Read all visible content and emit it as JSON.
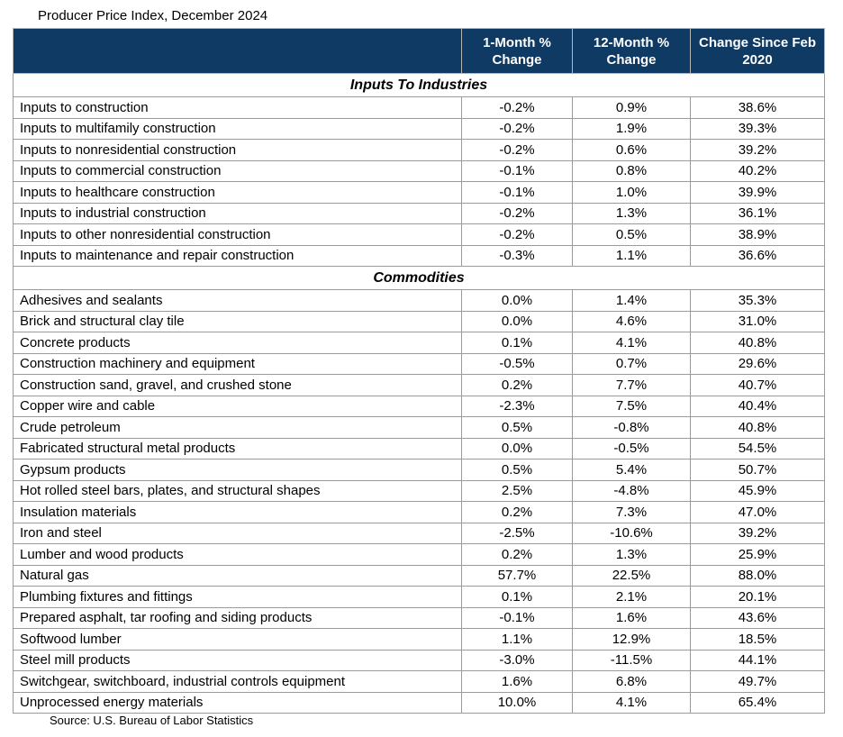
{
  "title": "Producer Price Index, December 2024",
  "source": "Source: U.S. Bureau of Labor Statistics",
  "colors": {
    "header_background": "#0e3a63",
    "header_text": "#ffffff",
    "grid_border": "#9b9b9b",
    "body_text": "#000000"
  },
  "chart_data": {
    "type": "table",
    "title": "Producer Price Index, December 2024",
    "source": "Source: U.S. Bureau of Labor Statistics",
    "columns": [
      "1-Month % Change",
      "12-Month % Change",
      "Change Since Feb 2020"
    ],
    "sections": [
      {
        "label": "Inputs To Industries",
        "rows": [
          {
            "label": "Inputs to construction",
            "values": [
              "-0.2%",
              "0.9%",
              "38.6%"
            ]
          },
          {
            "label": "Inputs to multifamily construction",
            "values": [
              "-0.2%",
              "1.9%",
              "39.3%"
            ]
          },
          {
            "label": "Inputs to nonresidential construction",
            "values": [
              "-0.2%",
              "0.6%",
              "39.2%"
            ]
          },
          {
            "label": "Inputs to commercial construction",
            "values": [
              "-0.1%",
              "0.8%",
              "40.2%"
            ]
          },
          {
            "label": "Inputs to healthcare construction",
            "values": [
              "-0.1%",
              "1.0%",
              "39.9%"
            ]
          },
          {
            "label": "Inputs to industrial construction",
            "values": [
              "-0.2%",
              "1.3%",
              "36.1%"
            ]
          },
          {
            "label": "Inputs to other nonresidential construction",
            "values": [
              "-0.2%",
              "0.5%",
              "38.9%"
            ]
          },
          {
            "label": "Inputs to maintenance and repair construction",
            "values": [
              "-0.3%",
              "1.1%",
              "36.6%"
            ]
          }
        ]
      },
      {
        "label": "Commodities",
        "rows": [
          {
            "label": "Adhesives and sealants",
            "values": [
              "0.0%",
              "1.4%",
              "35.3%"
            ]
          },
          {
            "label": "Brick and structural clay tile",
            "values": [
              "0.0%",
              "4.6%",
              "31.0%"
            ]
          },
          {
            "label": "Concrete products",
            "values": [
              "0.1%",
              "4.1%",
              "40.8%"
            ]
          },
          {
            "label": "Construction machinery and equipment",
            "values": [
              "-0.5%",
              "0.7%",
              "29.6%"
            ]
          },
          {
            "label": "Construction sand, gravel, and crushed stone",
            "values": [
              "0.2%",
              "7.7%",
              "40.7%"
            ]
          },
          {
            "label": "Copper wire and cable",
            "values": [
              "-2.3%",
              "7.5%",
              "40.4%"
            ]
          },
          {
            "label": "Crude petroleum",
            "values": [
              "0.5%",
              "-0.8%",
              "40.8%"
            ]
          },
          {
            "label": "Fabricated structural metal products",
            "values": [
              "0.0%",
              "-0.5%",
              "54.5%"
            ]
          },
          {
            "label": "Gypsum products",
            "values": [
              "0.5%",
              "5.4%",
              "50.7%"
            ]
          },
          {
            "label": "Hot rolled steel bars, plates, and structural shapes",
            "values": [
              "2.5%",
              "-4.8%",
              "45.9%"
            ]
          },
          {
            "label": "Insulation materials",
            "values": [
              "0.2%",
              "7.3%",
              "47.0%"
            ]
          },
          {
            "label": "Iron and steel",
            "values": [
              "-2.5%",
              "-10.6%",
              "39.2%"
            ]
          },
          {
            "label": "Lumber and wood products",
            "values": [
              "0.2%",
              "1.3%",
              "25.9%"
            ]
          },
          {
            "label": "Natural gas",
            "values": [
              "57.7%",
              "22.5%",
              "88.0%"
            ]
          },
          {
            "label": "Plumbing fixtures and fittings",
            "values": [
              "0.1%",
              "2.1%",
              "20.1%"
            ]
          },
          {
            "label": "Prepared asphalt, tar roofing and siding products",
            "values": [
              "-0.1%",
              "1.6%",
              "43.6%"
            ]
          },
          {
            "label": "Softwood lumber",
            "values": [
              "1.1%",
              "12.9%",
              "18.5%"
            ]
          },
          {
            "label": "Steel mill products",
            "values": [
              "-3.0%",
              "-11.5%",
              "44.1%"
            ]
          },
          {
            "label": "Switchgear, switchboard, industrial controls equipment",
            "values": [
              "1.6%",
              "6.8%",
              "49.7%"
            ]
          },
          {
            "label": "Unprocessed energy materials",
            "values": [
              "10.0%",
              "4.1%",
              "65.4%"
            ]
          }
        ]
      }
    ]
  }
}
